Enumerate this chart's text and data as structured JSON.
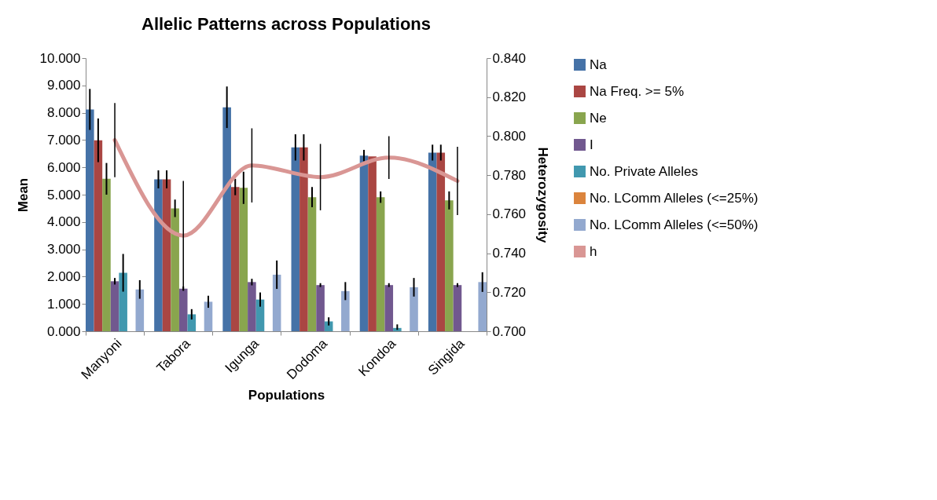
{
  "chart_data": {
    "type": "bar",
    "title": "Allelic Patterns across Populations",
    "xlabel": "Populations",
    "ylabel": "Mean",
    "y2label": "Heterozygosity",
    "categories": [
      "Manyoni",
      "Tabora",
      "Igunga",
      "Dodoma",
      "Kondoa",
      "Singida"
    ],
    "series": [
      {
        "name": "Na",
        "color": "#4572a7",
        "values": [
          8.12,
          5.56,
          8.2,
          6.73,
          6.43,
          6.54
        ],
        "errors": [
          0.75,
          0.33,
          0.76,
          0.48,
          0.21,
          0.29
        ]
      },
      {
        "name": "Na Freq. >= 5%",
        "color": "#aa4643",
        "values": [
          6.99,
          5.56,
          5.28,
          6.73,
          6.4,
          6.54
        ],
        "errors": [
          0.8,
          0.33,
          0.3,
          0.48,
          null,
          0.29
        ]
      },
      {
        "name": "Ne",
        "color": "#89a54e",
        "values": [
          5.58,
          4.5,
          5.25,
          4.91,
          4.91,
          4.79
        ],
        "errors": [
          0.58,
          0.32,
          0.59,
          0.37,
          0.21,
          0.33
        ]
      },
      {
        "name": "I",
        "color": "#71588f",
        "values": [
          1.83,
          1.56,
          1.8,
          1.69,
          1.69,
          1.69
        ],
        "errors": [
          0.12,
          0.08,
          0.12,
          0.07,
          0.07,
          0.07
        ]
      },
      {
        "name": "No. Private Alleles",
        "color": "#4198af",
        "values": [
          2.14,
          0.62,
          1.16,
          0.36,
          0.12,
          0
        ],
        "errors": [
          0.69,
          0.19,
          0.26,
          0.15,
          [
            0.05,
            0.25
          ],
          null
        ]
      },
      {
        "name": "No. LComm Alleles (<=25%)",
        "color": "#db843d",
        "values": [
          0,
          0,
          0,
          0,
          0,
          0
        ]
      },
      {
        "name": "No. LComm Alleles (<=50%)",
        "color": "#93a9cf",
        "values": [
          1.53,
          1.08,
          2.07,
          1.47,
          1.61,
          1.8
        ],
        "errors": [
          0.34,
          0.22,
          0.52,
          0.33,
          0.34,
          0.36
        ]
      },
      {
        "name": "h",
        "type": "line",
        "axis": "y2",
        "color": "#d99694",
        "values": [
          0.798,
          0.749,
          0.785,
          0.779,
          0.789,
          0.777
        ],
        "errors": [
          0.019,
          0.028,
          0.019,
          0.017,
          0.011,
          0.0175
        ]
      }
    ],
    "ylim": [
      0,
      10
    ],
    "yticks": [
      {
        "value": 0,
        "label": "0.000"
      },
      {
        "value": 1,
        "label": "1.000"
      },
      {
        "value": 2,
        "label": "2.000"
      },
      {
        "value": 3,
        "label": "3.000"
      },
      {
        "value": 4,
        "label": "4.000"
      },
      {
        "value": 5,
        "label": "5.000"
      },
      {
        "value": 6,
        "label": "6.000"
      },
      {
        "value": 7,
        "label": "7.000"
      },
      {
        "value": 8,
        "label": "8.000"
      },
      {
        "value": 9,
        "label": "9.000"
      },
      {
        "value": 10,
        "label": "10.000"
      }
    ],
    "y2lim": [
      0.7,
      0.84
    ],
    "y2ticks": [
      {
        "value": 0.7,
        "label": "0.700"
      },
      {
        "value": 0.72,
        "label": "0.720"
      },
      {
        "value": 0.74,
        "label": "0.740"
      },
      {
        "value": 0.76,
        "label": "0.760"
      },
      {
        "value": 0.78,
        "label": "0.780"
      },
      {
        "value": 0.8,
        "label": "0.800"
      },
      {
        "value": 0.82,
        "label": "0.820"
      },
      {
        "value": 0.84,
        "label": "0.840"
      }
    ],
    "legend": "right",
    "grid": false,
    "marker": "none"
  }
}
